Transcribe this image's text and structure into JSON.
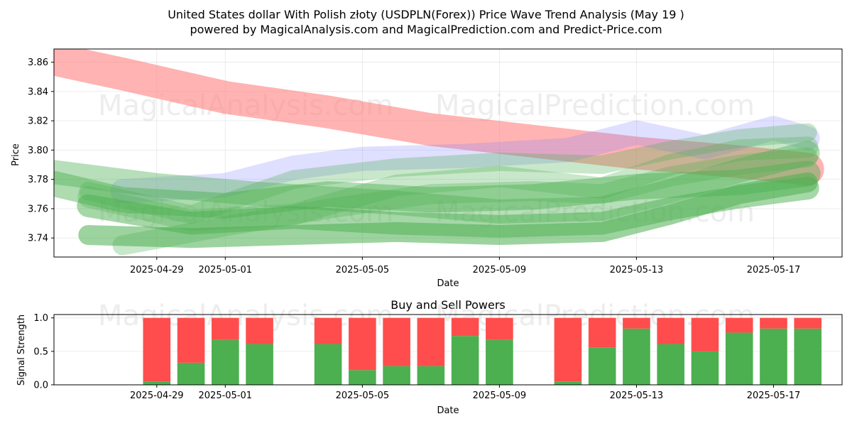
{
  "title_line1": "United States dollar With Polish złoty (USDPLN(Forex)) Price Wave Trend Analysis (May 19 )",
  "title_line2": "powered by MagicalAnalysis.com and MagicalPrediction.com and Predict-Price.com",
  "watermarks": [
    "MagicalAnalysis.com",
    "MagicalPrediction.com"
  ],
  "chart_data": [
    {
      "type": "line",
      "xlabel": "Date",
      "ylabel": "Price",
      "x_ticks": [
        "2025-04-29",
        "2025-05-01",
        "2025-05-05",
        "2025-05-09",
        "2025-05-13",
        "2025-05-17"
      ],
      "xlim": [
        "2025-04-26",
        "2025-05-19"
      ],
      "y_ticks": [
        3.74,
        3.76,
        3.78,
        3.8,
        3.82,
        3.84,
        3.86
      ],
      "ylim": [
        3.727,
        3.869
      ],
      "grid": true,
      "series": [
        {
          "color": "#ff8080",
          "x": [
            "2025-04-26",
            "2025-04-28",
            "2025-05-01",
            "2025-05-04",
            "2025-05-07",
            "2025-05-10",
            "2025-05-13",
            "2025-05-16",
            "2025-05-18"
          ],
          "y": [
            3.862,
            3.852,
            3.836,
            3.826,
            3.814,
            3.806,
            3.798,
            3.792,
            3.787
          ]
        },
        {
          "color": "#8080ff",
          "x": [
            "2025-04-28",
            "2025-05-01",
            "2025-05-03",
            "2025-05-05",
            "2025-05-08",
            "2025-05-11",
            "2025-05-13",
            "2025-05-15",
            "2025-05-17",
            "2025-05-18"
          ],
          "y": [
            3.772,
            3.776,
            3.788,
            3.794,
            3.796,
            3.8,
            3.812,
            3.802,
            3.815,
            3.808
          ]
        },
        {
          "color": "#4caf50",
          "x": [
            "2025-04-26",
            "2025-04-28",
            "2025-05-01",
            "2025-05-04",
            "2025-05-07",
            "2025-05-10",
            "2025-05-13",
            "2025-05-16",
            "2025-05-18"
          ],
          "y": [
            3.777,
            3.766,
            3.762,
            3.77,
            3.766,
            3.768,
            3.775,
            3.778,
            3.784
          ]
        },
        {
          "color": "#4caf50",
          "x": [
            "2025-04-26",
            "2025-04-29",
            "2025-05-02",
            "2025-05-06",
            "2025-05-09",
            "2025-05-12",
            "2025-05-14",
            "2025-05-16",
            "2025-05-18"
          ],
          "y": [
            3.785,
            3.776,
            3.77,
            3.764,
            3.758,
            3.76,
            3.772,
            3.786,
            3.798
          ]
        },
        {
          "color": "#4caf50",
          "x": [
            "2025-04-27",
            "2025-04-30",
            "2025-05-03",
            "2025-05-06",
            "2025-05-09",
            "2025-05-12",
            "2025-05-14",
            "2025-05-16",
            "2025-05-18"
          ],
          "y": [
            3.768,
            3.752,
            3.756,
            3.776,
            3.782,
            3.774,
            3.79,
            3.8,
            3.802
          ]
        },
        {
          "color": "#4caf50",
          "x": [
            "2025-04-27",
            "2025-04-30",
            "2025-05-03",
            "2025-05-06",
            "2025-05-09",
            "2025-05-12",
            "2025-05-14",
            "2025-05-16",
            "2025-05-18"
          ],
          "y": [
            3.762,
            3.75,
            3.754,
            3.75,
            3.748,
            3.75,
            3.76,
            3.768,
            3.774
          ]
        },
        {
          "color": "#4caf50",
          "x": [
            "2025-04-27",
            "2025-04-30",
            "2025-05-03",
            "2025-05-06",
            "2025-05-09",
            "2025-05-12",
            "2025-05-14",
            "2025-05-16",
            "2025-05-18"
          ],
          "y": [
            3.742,
            3.74,
            3.742,
            3.744,
            3.742,
            3.744,
            3.756,
            3.77,
            3.778
          ]
        },
        {
          "color": "#4caf50",
          "x": [
            "2025-04-27",
            "2025-04-30",
            "2025-05-03",
            "2025-05-06",
            "2025-05-09",
            "2025-05-12",
            "2025-05-14",
            "2025-05-16",
            "2025-05-18"
          ],
          "y": [
            3.772,
            3.756,
            3.78,
            3.788,
            3.792,
            3.79,
            3.8,
            3.808,
            3.812
          ]
        },
        {
          "color": "#4caf50",
          "x": [
            "2025-04-28",
            "2025-05-01",
            "2025-05-04",
            "2025-05-07",
            "2025-05-10",
            "2025-05-12",
            "2025-05-14",
            "2025-05-16",
            "2025-05-18"
          ],
          "y": [
            3.735,
            3.748,
            3.76,
            3.77,
            3.772,
            3.77,
            3.782,
            3.79,
            3.795
          ]
        }
      ]
    },
    {
      "type": "bar",
      "title": "Buy and Sell Powers",
      "xlabel": "Date",
      "ylabel": "Signal Strength",
      "x_ticks": [
        "2025-04-29",
        "2025-05-01",
        "2025-05-05",
        "2025-05-09",
        "2025-05-13",
        "2025-05-17"
      ],
      "xlim": [
        "2025-04-26",
        "2025-05-19"
      ],
      "y_ticks": [
        0.0,
        0.5,
        1.0
      ],
      "ylim": [
        0,
        1.05
      ],
      "grid": true,
      "series": [
        {
          "name": "buy",
          "color": "#4caf50"
        },
        {
          "name": "sell",
          "color": "#ff4d4d"
        }
      ],
      "x": [
        "2025-04-29",
        "2025-04-30",
        "2025-05-01",
        "2025-05-02",
        "2025-05-04",
        "2025-05-05",
        "2025-05-06",
        "2025-05-07",
        "2025-05-08",
        "2025-05-09",
        "2025-05-11",
        "2025-05-12",
        "2025-05-13",
        "2025-05-14",
        "2025-05-15",
        "2025-05-16",
        "2025-05-17",
        "2025-05-18"
      ],
      "buy": [
        0.05,
        0.33,
        0.67,
        0.61,
        0.61,
        0.22,
        0.28,
        0.28,
        0.73,
        0.67,
        0.05,
        0.56,
        0.84,
        0.61,
        0.5,
        0.78,
        0.84,
        0.84
      ],
      "sell": [
        0.95,
        0.67,
        0.33,
        0.39,
        0.39,
        0.78,
        0.72,
        0.72,
        0.27,
        0.33,
        0.95,
        0.44,
        0.16,
        0.39,
        0.5,
        0.22,
        0.16,
        0.16
      ]
    }
  ]
}
